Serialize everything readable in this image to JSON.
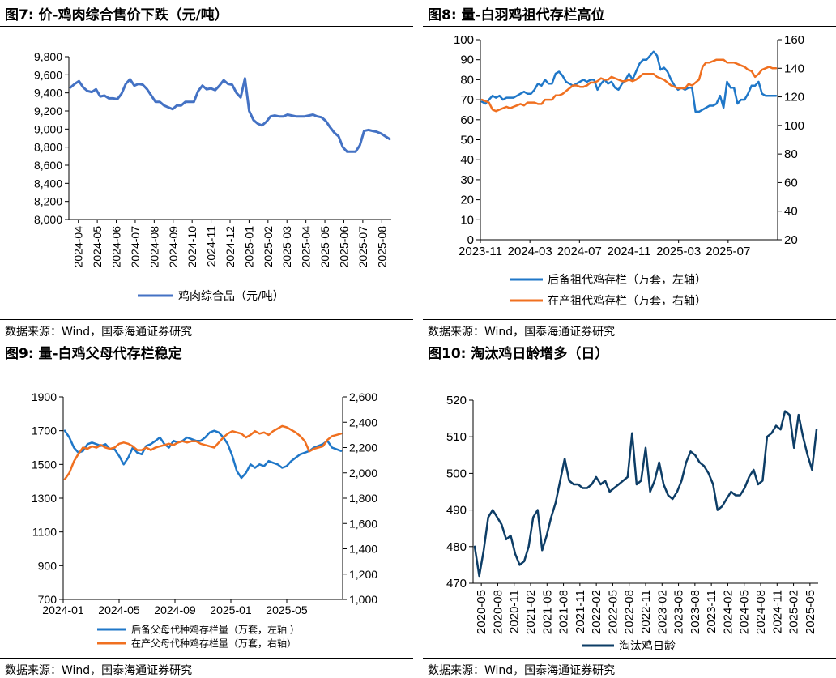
{
  "source_text": "数据来源：Wind，国泰海通证券研究",
  "chart_data": [
    {
      "id": "p1",
      "type": "line",
      "title": "图7:  价-鸡肉综合售价下跌（元/吨）",
      "ylim": [
        8000,
        9800
      ],
      "yticks": [
        "8,000",
        "8,200",
        "8,400",
        "8,600",
        "8,800",
        "9,000",
        "9,200",
        "9,400",
        "9,600",
        "9,800"
      ],
      "xticks": [
        "2024-04",
        "2024-05",
        "2024-06",
        "2024-07",
        "2024-08",
        "2024-09",
        "2024-10",
        "2024-11",
        "2024-12",
        "2025-01",
        "2025-02",
        "2025-03",
        "2025-04",
        "2025-05",
        "2025-06",
        "2025-07",
        "2025-08"
      ],
      "legend": "top",
      "series": [
        {
          "name": "鸡肉综合品（元/吨）",
          "color": "#4472c4",
          "axis": "left",
          "values": [
            9460,
            9500,
            9530,
            9460,
            9420,
            9410,
            9440,
            9360,
            9370,
            9340,
            9340,
            9330,
            9390,
            9500,
            9550,
            9480,
            9500,
            9490,
            9440,
            9370,
            9300,
            9300,
            9260,
            9240,
            9220,
            9260,
            9260,
            9300,
            9300,
            9300,
            9420,
            9480,
            9440,
            9450,
            9430,
            9480,
            9540,
            9500,
            9490,
            9400,
            9350,
            9560,
            9200,
            9100,
            9060,
            9040,
            9080,
            9140,
            9150,
            9140,
            9140,
            9160,
            9150,
            9140,
            9140,
            9140,
            9150,
            9160,
            9140,
            9130,
            9090,
            9020,
            8960,
            8920,
            8800,
            8750,
            8750,
            8750,
            8820,
            8980,
            8990,
            8980,
            8970,
            8950,
            8920,
            8890
          ]
        }
      ]
    },
    {
      "id": "p2",
      "type": "line",
      "title": "图8:  量-白羽鸡祖代存栏高位",
      "ylim": [
        0,
        100
      ],
      "y2lim": [
        20,
        160
      ],
      "yticks": [
        "0",
        "10",
        "20",
        "30",
        "40",
        "50",
        "60",
        "70",
        "80",
        "90",
        "100"
      ],
      "y2ticks": [
        "20",
        "40",
        "60",
        "80",
        "100",
        "120",
        "140",
        "160"
      ],
      "xticks": [
        "2023-11",
        "2024-03",
        "2024-07",
        "2024-11",
        "2025-03",
        "2025-07"
      ],
      "legend": "bottom",
      "series": [
        {
          "name": "后备祖代鸡存栏（万套，左轴）",
          "color": "#1f77c8",
          "axis": "left",
          "values": [
            69,
            68,
            70,
            72,
            71,
            72,
            70,
            71,
            71,
            71,
            72,
            73,
            74,
            73,
            73,
            75,
            78,
            77,
            80,
            78,
            78,
            83,
            84,
            82,
            79,
            78,
            77,
            78,
            79,
            80,
            79,
            80,
            80,
            75,
            78,
            80,
            78,
            79,
            76,
            75,
            78,
            80,
            83,
            80,
            84,
            88,
            90,
            90,
            92,
            94,
            92,
            85,
            86,
            84,
            80,
            77,
            75,
            76,
            75,
            76,
            76,
            64,
            64,
            65,
            66,
            67,
            67,
            68,
            72,
            66,
            79,
            76,
            76,
            68,
            70,
            70,
            73,
            77,
            77,
            79,
            73,
            72,
            72,
            72,
            72
          ]
        },
        {
          "name": "在产祖代鸡存栏（万套，右轴）",
          "color": "#f07020",
          "axis": "right",
          "values": [
            118,
            117,
            116,
            111,
            110,
            111,
            112,
            113,
            112,
            113,
            114,
            115,
            114,
            116,
            116,
            116,
            115,
            115,
            118,
            118,
            118,
            121,
            121,
            122,
            124,
            126,
            128,
            128,
            127,
            127,
            128,
            130,
            130,
            131,
            133,
            132,
            132,
            134,
            133,
            132,
            131,
            131,
            132,
            131,
            132,
            134,
            136,
            136,
            136,
            136,
            134,
            133,
            132,
            130,
            128,
            127,
            126,
            126,
            126,
            129,
            128,
            130,
            132,
            141,
            144,
            144,
            145,
            146,
            146,
            146,
            144,
            144,
            144,
            143,
            142,
            141,
            139,
            138,
            134,
            136,
            139,
            140,
            141,
            140,
            140
          ]
        }
      ]
    },
    {
      "id": "p3",
      "type": "line",
      "title": "图9:  量-白鸡父母代存栏稳定",
      "ylim": [
        700,
        1900
      ],
      "y2lim": [
        1000,
        2600
      ],
      "yticks": [
        "700",
        "900",
        "1100",
        "1300",
        "1500",
        "1700",
        "1900"
      ],
      "y2ticks": [
        "1,000",
        "1,200",
        "1,400",
        "1,600",
        "1,800",
        "2,000",
        "2,200",
        "2,400",
        "2,600"
      ],
      "xticks": [
        "2024-01",
        "2024-05",
        "2024-09",
        "2025-01",
        "2025-05"
      ],
      "legend": "bottom",
      "series": [
        {
          "name": "后备父母代种鸡存栏量（万套，左轴 ）",
          "color": "#1f77c8",
          "axis": "left",
          "values": [
            1700,
            1660,
            1600,
            1570,
            1580,
            1620,
            1630,
            1620,
            1610,
            1620,
            1590,
            1590,
            1550,
            1500,
            1540,
            1600,
            1570,
            1560,
            1610,
            1620,
            1640,
            1660,
            1620,
            1600,
            1640,
            1630,
            1640,
            1660,
            1650,
            1640,
            1640,
            1660,
            1690,
            1700,
            1690,
            1660,
            1620,
            1550,
            1460,
            1420,
            1450,
            1500,
            1480,
            1500,
            1490,
            1520,
            1510,
            1500,
            1480,
            1490,
            1520,
            1540,
            1560,
            1570,
            1580,
            1600,
            1610,
            1620,
            1640,
            1600,
            1590,
            1580
          ]
        },
        {
          "name": "在产父母代种鸡存栏量（万套，右轴）",
          "color": "#f07020",
          "axis": "right",
          "values": [
            1950,
            2000,
            2090,
            2150,
            2200,
            2190,
            2210,
            2200,
            2220,
            2200,
            2190,
            2200,
            2230,
            2240,
            2230,
            2210,
            2180,
            2180,
            2200,
            2180,
            2200,
            2210,
            2220,
            2230,
            2220,
            2240,
            2250,
            2240,
            2250,
            2250,
            2230,
            2220,
            2210,
            2200,
            2240,
            2280,
            2310,
            2330,
            2320,
            2310,
            2280,
            2300,
            2330,
            2310,
            2320,
            2300,
            2330,
            2350,
            2370,
            2360,
            2340,
            2320,
            2290,
            2250,
            2170,
            2190,
            2200,
            2210,
            2260,
            2290,
            2300,
            2310
          ]
        }
      ]
    },
    {
      "id": "p4",
      "type": "line",
      "title": "图10:  淘汰鸡日龄增多（日）",
      "ylim": [
        470,
        520
      ],
      "yticks": [
        "470",
        "480",
        "490",
        "500",
        "510",
        "520"
      ],
      "xticks": [
        "2020-05",
        "2020-08",
        "2020-11",
        "2021-02",
        "2021-05",
        "2021-08",
        "2021-11",
        "2022-02",
        "2022-05",
        "2022-08",
        "2022-11",
        "2023-02",
        "2023-05",
        "2023-08",
        "2023-11",
        "2024-02",
        "2024-05",
        "2024-08",
        "2024-11",
        "2025-02",
        "2025-05"
      ],
      "legend": "bottom",
      "series": [
        {
          "name": "淘汰鸡日龄",
          "color": "#0d3d66",
          "axis": "left",
          "values": [
            480,
            472,
            479,
            488,
            490,
            488,
            486,
            482,
            483,
            478,
            475,
            476,
            480,
            488,
            490,
            479,
            483,
            488,
            492,
            498,
            504,
            498,
            497,
            497,
            496,
            496,
            497,
            499,
            497,
            498,
            495,
            496,
            497,
            498,
            499,
            511,
            497,
            498,
            507,
            495,
            498,
            503,
            497,
            494,
            493,
            495,
            498,
            503,
            506,
            505,
            503,
            502,
            500,
            497,
            490,
            491,
            493,
            495,
            494,
            494,
            496,
            499,
            501,
            497,
            498,
            510,
            511,
            513,
            512,
            517,
            516,
            507,
            516,
            510,
            505,
            501,
            512
          ]
        }
      ]
    }
  ]
}
